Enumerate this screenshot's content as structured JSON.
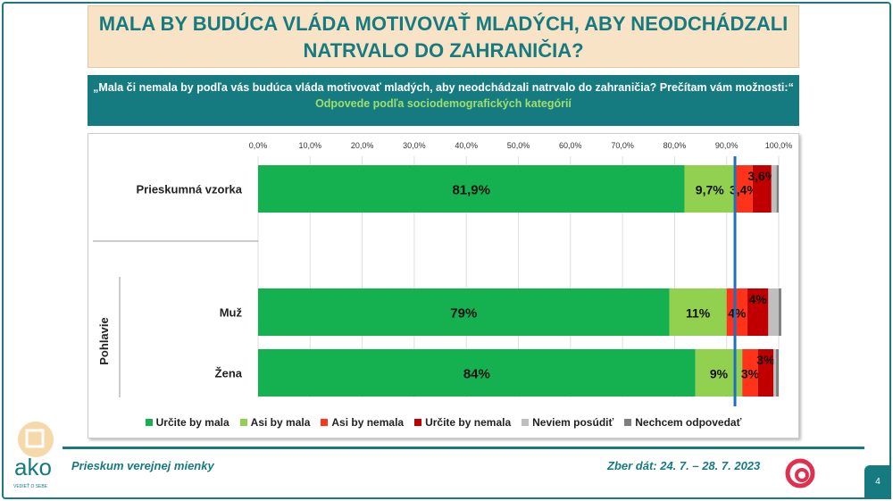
{
  "title": "MALA BY BUDÚCA VLÁDA MOTIVOVAŤ MLADÝCH, ABY NEODCHÁDZALI NATRVALO DO ZAHRANIČIA?",
  "question": "„Mala či nemala by podľa vás budúca vláda motivovať mladých, aby neodchádzali natrvalo do zahraničia? Prečítam vám možnosti:“",
  "subtitle": "Odpovede podľa sociodemografických kategórií",
  "footer": {
    "left": "Prieskum verejnej mienky",
    "right": "Zber dát: 24. 7. – 28. 7. 2023",
    "page": "4",
    "logo": "ako",
    "logo_tagline": "VEDIEŤ O SEBE"
  },
  "chart_data": {
    "type": "bar",
    "orientation": "horizontal",
    "stacked": true,
    "xlim": [
      0,
      100
    ],
    "ticks": [
      "0,0%",
      "10,0%",
      "20,0%",
      "30,0%",
      "40,0%",
      "50,0%",
      "60,0%",
      "70,0%",
      "80,0%",
      "90,0%",
      "100,0%"
    ],
    "group_label": "Pohlavie",
    "categories": [
      "Prieskumná vzorka",
      "Muž",
      "Žena"
    ],
    "series": [
      {
        "name": "Určite by mala",
        "color": "#15b050",
        "values": [
          81.9,
          79,
          84
        ],
        "labels": [
          "81,9%",
          "79%",
          "84%"
        ]
      },
      {
        "name": "Asi by mala",
        "color": "#92d050",
        "values": [
          9.7,
          11,
          9
        ],
        "labels": [
          "9,7%",
          "11%",
          "9%"
        ]
      },
      {
        "name": "Asi by nemala",
        "color": "#ff3319",
        "values": [
          3.4,
          4,
          3
        ],
        "labels": [
          "3,4%",
          "4%",
          "3%"
        ]
      },
      {
        "name": "Určite by nemala",
        "color": "#c00000",
        "values": [
          3.6,
          4,
          3
        ],
        "labels": [
          "3,6%",
          "4%",
          "3%"
        ]
      },
      {
        "name": "Neviem posúdiť",
        "color": "#bfbfbf",
        "values": [
          1.0,
          2,
          0.5
        ],
        "labels": [
          "",
          "",
          ""
        ]
      },
      {
        "name": "Nechcem odpovedať",
        "color": "#7f7f7f",
        "values": [
          0.4,
          0.5,
          0.5
        ],
        "labels": [
          "",
          "",
          ""
        ]
      }
    ],
    "reference_line": {
      "value": 91.6,
      "color": "#1f6fc0"
    },
    "legend": "bottom",
    "grid": true
  }
}
